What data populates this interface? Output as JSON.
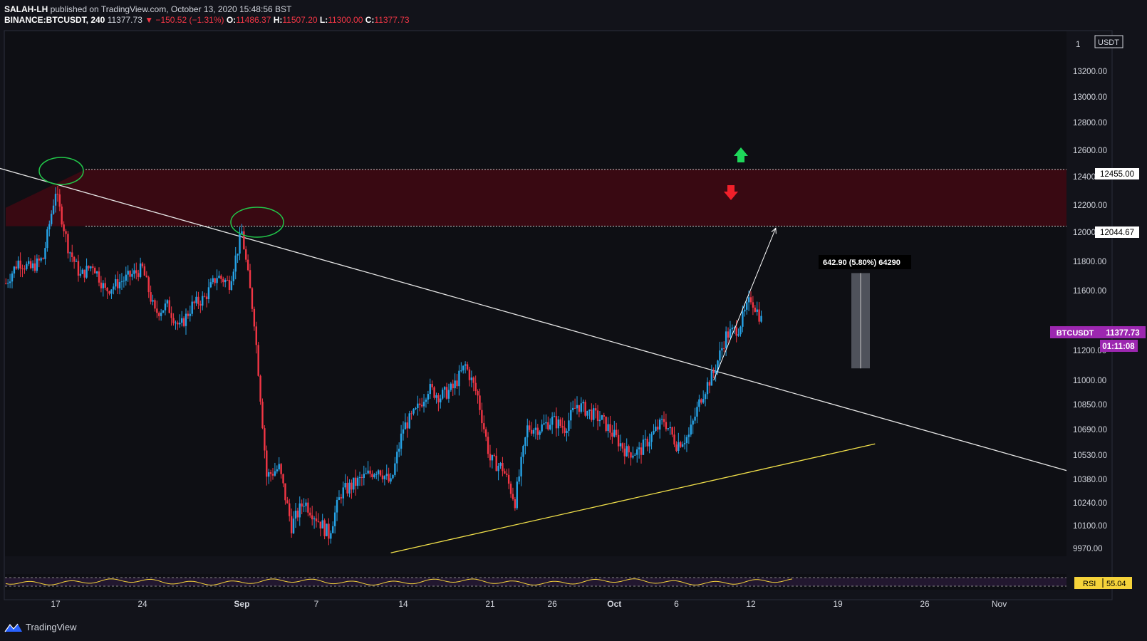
{
  "header": {
    "author": "SALAH-LH",
    "published": "published on TradingView.com, October 13, 2020 15:48:56 BST",
    "symbol_line": "BINANCE:BTCUSDT, 240",
    "last": "11377.73",
    "change": "▼ −150.52 (−1.31%)",
    "o_label": "O:",
    "o_val": "11486.37",
    "h_label": "H:",
    "h_val": "11507.20",
    "l_label": "L:",
    "l_val": "11300.00",
    "c_label": "C:",
    "c_val": "11377.73"
  },
  "brand": {
    "name": "TradingView",
    "icon": "tradingview-logo-icon"
  },
  "chart_data": {
    "type": "candlestick",
    "symbol": "BINANCE:BTCUSDT",
    "timeframe": "240",
    "currency": "USDT",
    "x_ticks": [
      "17",
      "24",
      "Sep",
      "7",
      "14",
      "21",
      "26",
      "Oct",
      "6",
      "12",
      "19",
      "26",
      "Nov"
    ],
    "y_ticks": [
      "13200.00",
      "13000.00",
      "12800.00",
      "12600.00",
      "12400.00",
      "12200.00",
      "12000.00",
      "11800.00",
      "11600.00",
      "11200.00",
      "11000.00",
      "10850.00",
      "10690.00",
      "10530.00",
      "10380.00",
      "10240.00",
      "10100.00",
      "9970.00"
    ],
    "y_top_partial": "1",
    "path": [
      [
        "2020-08-13",
        11650
      ],
      [
        "2020-08-14",
        11800
      ],
      [
        "2020-08-15",
        11750
      ],
      [
        "2020-08-16",
        11820
      ],
      [
        "2020-08-17",
        12300
      ],
      [
        "2020-08-18",
        11900
      ],
      [
        "2020-08-19",
        11700
      ],
      [
        "2020-08-20",
        11780
      ],
      [
        "2020-08-21",
        11600
      ],
      [
        "2020-08-22",
        11650
      ],
      [
        "2020-08-23",
        11700
      ],
      [
        "2020-08-24",
        11750
      ],
      [
        "2020-08-25",
        11450
      ],
      [
        "2020-08-26",
        11500
      ],
      [
        "2020-08-27",
        11350
      ],
      [
        "2020-08-28",
        11500
      ],
      [
        "2020-08-29",
        11550
      ],
      [
        "2020-08-30",
        11700
      ],
      [
        "2020-08-31",
        11650
      ],
      [
        "2020-09-01",
        12000
      ],
      [
        "2020-09-02",
        11400
      ],
      [
        "2020-09-03",
        10400
      ],
      [
        "2020-09-04",
        10450
      ],
      [
        "2020-09-05",
        10100
      ],
      [
        "2020-09-06",
        10250
      ],
      [
        "2020-09-07",
        10150
      ],
      [
        "2020-09-08",
        10050
      ],
      [
        "2020-09-09",
        10300
      ],
      [
        "2020-09-10",
        10350
      ],
      [
        "2020-09-11",
        10400
      ],
      [
        "2020-09-12",
        10450
      ],
      [
        "2020-09-13",
        10350
      ],
      [
        "2020-09-14",
        10700
      ],
      [
        "2020-09-15",
        10800
      ],
      [
        "2020-09-16",
        10950
      ],
      [
        "2020-09-17",
        10900
      ],
      [
        "2020-09-18",
        10950
      ],
      [
        "2020-09-19",
        11100
      ],
      [
        "2020-09-20",
        10900
      ],
      [
        "2020-09-21",
        10500
      ],
      [
        "2020-09-22",
        10450
      ],
      [
        "2020-09-23",
        10250
      ],
      [
        "2020-09-24",
        10700
      ],
      [
        "2020-09-25",
        10700
      ],
      [
        "2020-09-26",
        10750
      ],
      [
        "2020-09-27",
        10700
      ],
      [
        "2020-09-28",
        10850
      ],
      [
        "2020-09-29",
        10800
      ],
      [
        "2020-09-30",
        10750
      ],
      [
        "2020-10-01",
        10650
      ],
      [
        "2020-10-02",
        10550
      ],
      [
        "2020-10-03",
        10550
      ],
      [
        "2020-10-04",
        10650
      ],
      [
        "2020-10-05",
        10750
      ],
      [
        "2020-10-06",
        10600
      ],
      [
        "2020-10-07",
        10650
      ],
      [
        "2020-10-08",
        10900
      ],
      [
        "2020-10-09",
        11050
      ],
      [
        "2020-10-10",
        11300
      ],
      [
        "2020-10-11",
        11350
      ],
      [
        "2020-10-12",
        11550
      ],
      [
        "2020-10-13",
        11377.73
      ]
    ],
    "bull_color": "#26a4e8",
    "bear_color": "#f23645",
    "last_price": "11377.73",
    "last_label": "BTCUSDT",
    "countdown": "01:11:08",
    "resistance_zone": {
      "top": 12455.0,
      "bottom": 12044.67,
      "top_label": "12455.00",
      "bottom_label": "12044.67",
      "color": "#3c0a12"
    },
    "descending_trendline": {
      "start": [
        "2020-08-10",
        12530
      ],
      "end": [
        "2020-11-08",
        10400
      ],
      "color": "#e6e6e6"
    },
    "ascending_trendline": {
      "start": [
        "2020-09-13",
        9930
      ],
      "end": [
        "2020-10-22",
        10600
      ],
      "color": "#f1e04a"
    },
    "projection_arrow": {
      "start": [
        "2020-10-09",
        11000
      ],
      "end": [
        "2020-10-14",
        12030
      ]
    },
    "measure": {
      "label": "642.90 (5.80%) 64290",
      "top": 11720,
      "bottom": 11080
    },
    "up_arrow_color": "#1ed75a",
    "down_arrow_color": "#f0202a",
    "rsi": {
      "label": "RSI",
      "value": "55.04",
      "color": "#f5d33a"
    }
  }
}
